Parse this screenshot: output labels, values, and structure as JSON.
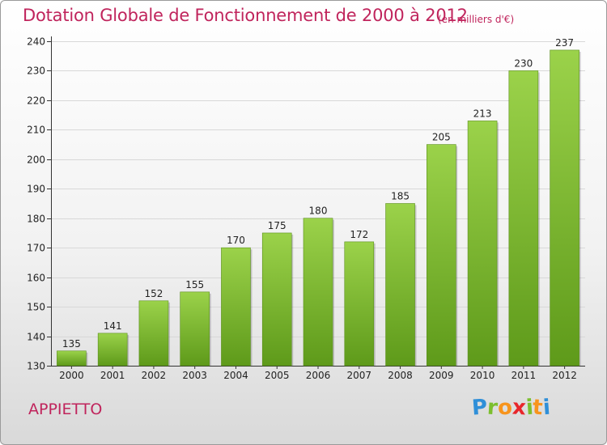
{
  "chart_data": {
    "type": "bar",
    "title": "Dotation Globale de Fonctionnement de 2000 à 2012",
    "subtitle": "(en milliers d'€)",
    "categories": [
      "2000",
      "2001",
      "2002",
      "2003",
      "2004",
      "2005",
      "2006",
      "2007",
      "2008",
      "2009",
      "2010",
      "2011",
      "2012"
    ],
    "values": [
      135,
      141,
      152,
      155,
      170,
      175,
      180,
      172,
      185,
      205,
      213,
      230,
      237
    ],
    "ylim": [
      130,
      240
    ],
    "yticks": [
      130,
      140,
      150,
      160,
      170,
      180,
      190,
      200,
      210,
      220,
      230,
      240
    ],
    "xlabel": "",
    "ylabel": "",
    "grid": true,
    "bar_color": "#7cbf2e"
  },
  "footer": {
    "commune": "APPIETTO",
    "logo_letters": [
      "P",
      "r",
      "o",
      "x",
      "i",
      "t",
      "i"
    ],
    "logo_colors": [
      "#2f8fd8",
      "#7cbf2e",
      "#f7941d",
      "#e8262b",
      "#7cbf2e",
      "#f7941d",
      "#2f8fd8"
    ]
  },
  "colors": {
    "title": "#c0245c",
    "axis": "#333333",
    "grid": "#d8d8d8"
  }
}
